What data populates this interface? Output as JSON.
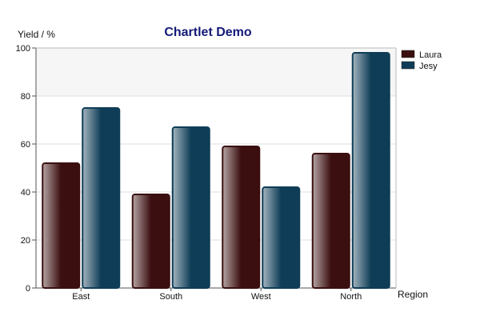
{
  "chart_data": {
    "type": "bar",
    "title": "Chartlet Demo",
    "xlabel": "Region",
    "ylabel": "Yield / %",
    "categories": [
      "East",
      "South",
      "West",
      "North"
    ],
    "series": [
      {
        "name": "Laura",
        "values": [
          52,
          39,
          59,
          56
        ],
        "color": "#3b0f10"
      },
      {
        "name": "Jesy",
        "values": [
          75,
          67,
          42,
          98
        ],
        "color": "#0f3d57"
      }
    ],
    "ylim": [
      0,
      100
    ],
    "yticks": [
      "0",
      "20",
      "40",
      "60",
      "80",
      "100"
    ],
    "grid": true,
    "legend_position": "right"
  }
}
